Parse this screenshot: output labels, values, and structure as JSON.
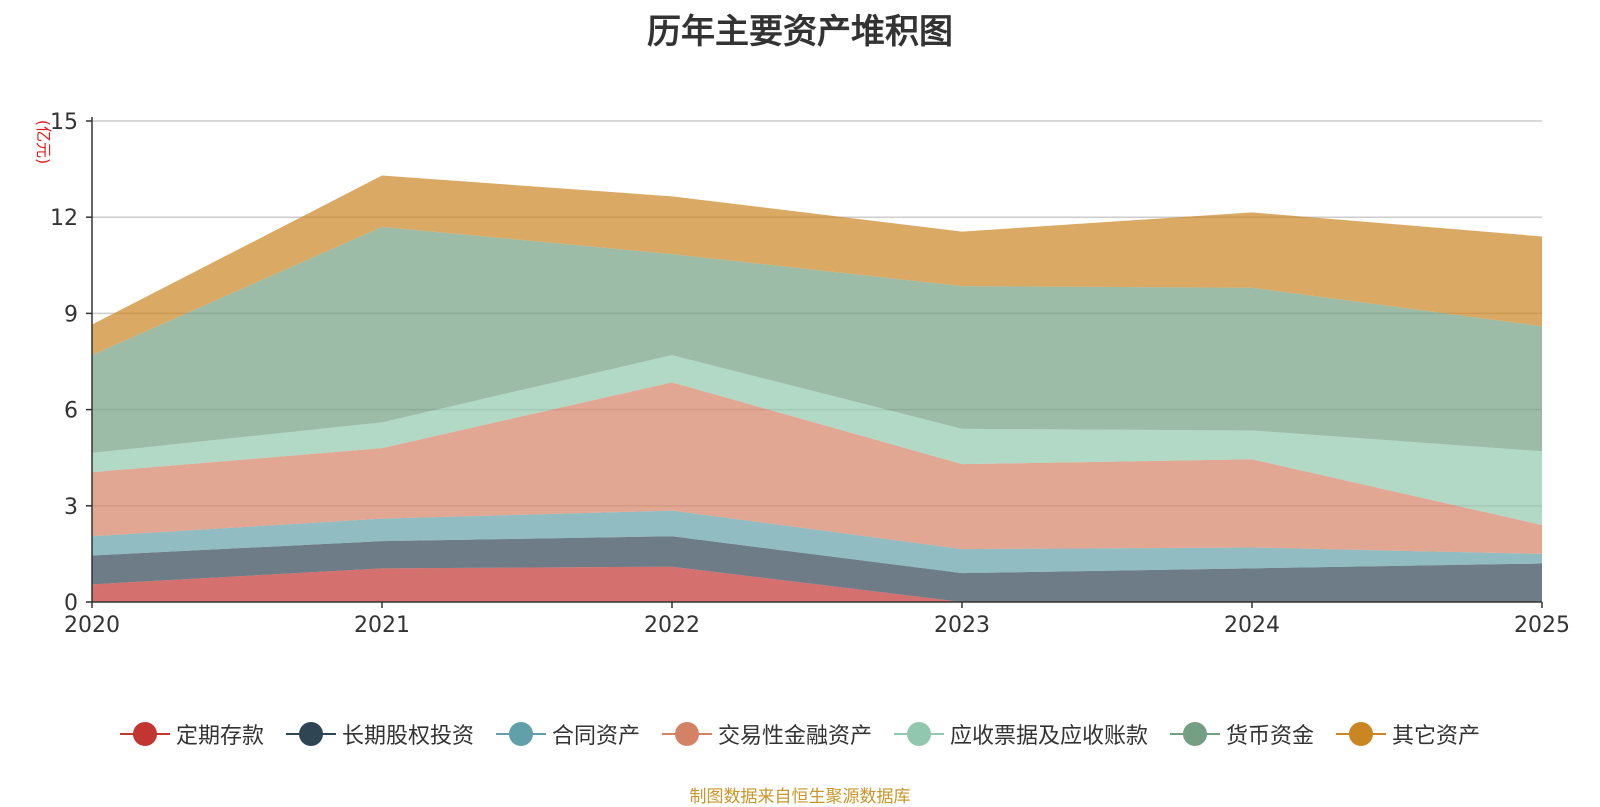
{
  "chart_data": {
    "type": "area",
    "stacked": true,
    "title": "历年主要资产堆积图",
    "ylabel": "(亿元)",
    "xlabel": "",
    "categories": [
      "2020",
      "2021",
      "2022",
      "2023",
      "2024",
      "2025"
    ],
    "ylim": [
      0,
      15
    ],
    "yticks": [
      0,
      3,
      6,
      9,
      12,
      15
    ],
    "grid": true,
    "legend_position": "bottom",
    "series": [
      {
        "name": "定期存款",
        "color": "#c23531",
        "values": [
          0.55,
          1.05,
          1.1,
          0.0,
          0.0,
          0.0
        ]
      },
      {
        "name": "长期股权投资",
        "color": "#2f4554",
        "values": [
          0.9,
          0.85,
          0.95,
          0.9,
          1.05,
          1.2
        ]
      },
      {
        "name": "合同资产",
        "color": "#61a0a8",
        "values": [
          0.6,
          0.7,
          0.8,
          0.75,
          0.65,
          0.3
        ]
      },
      {
        "name": "交易性金融资产",
        "color": "#d48265",
        "values": [
          2.0,
          2.2,
          4.0,
          2.65,
          2.75,
          0.9
        ]
      },
      {
        "name": "应收票据及应收账款",
        "color": "#91c7ae",
        "values": [
          0.6,
          0.8,
          0.85,
          1.1,
          0.9,
          2.3
        ]
      },
      {
        "name": "货币资金",
        "color": "#749f83",
        "values": [
          3.05,
          6.1,
          3.15,
          4.45,
          4.45,
          3.9
        ]
      },
      {
        "name": "其它资产",
        "color": "#ca8622",
        "values": [
          0.95,
          1.6,
          1.8,
          1.7,
          2.35,
          2.8
        ]
      }
    ]
  },
  "source_text": "制图数据来自恒生聚源数据库"
}
